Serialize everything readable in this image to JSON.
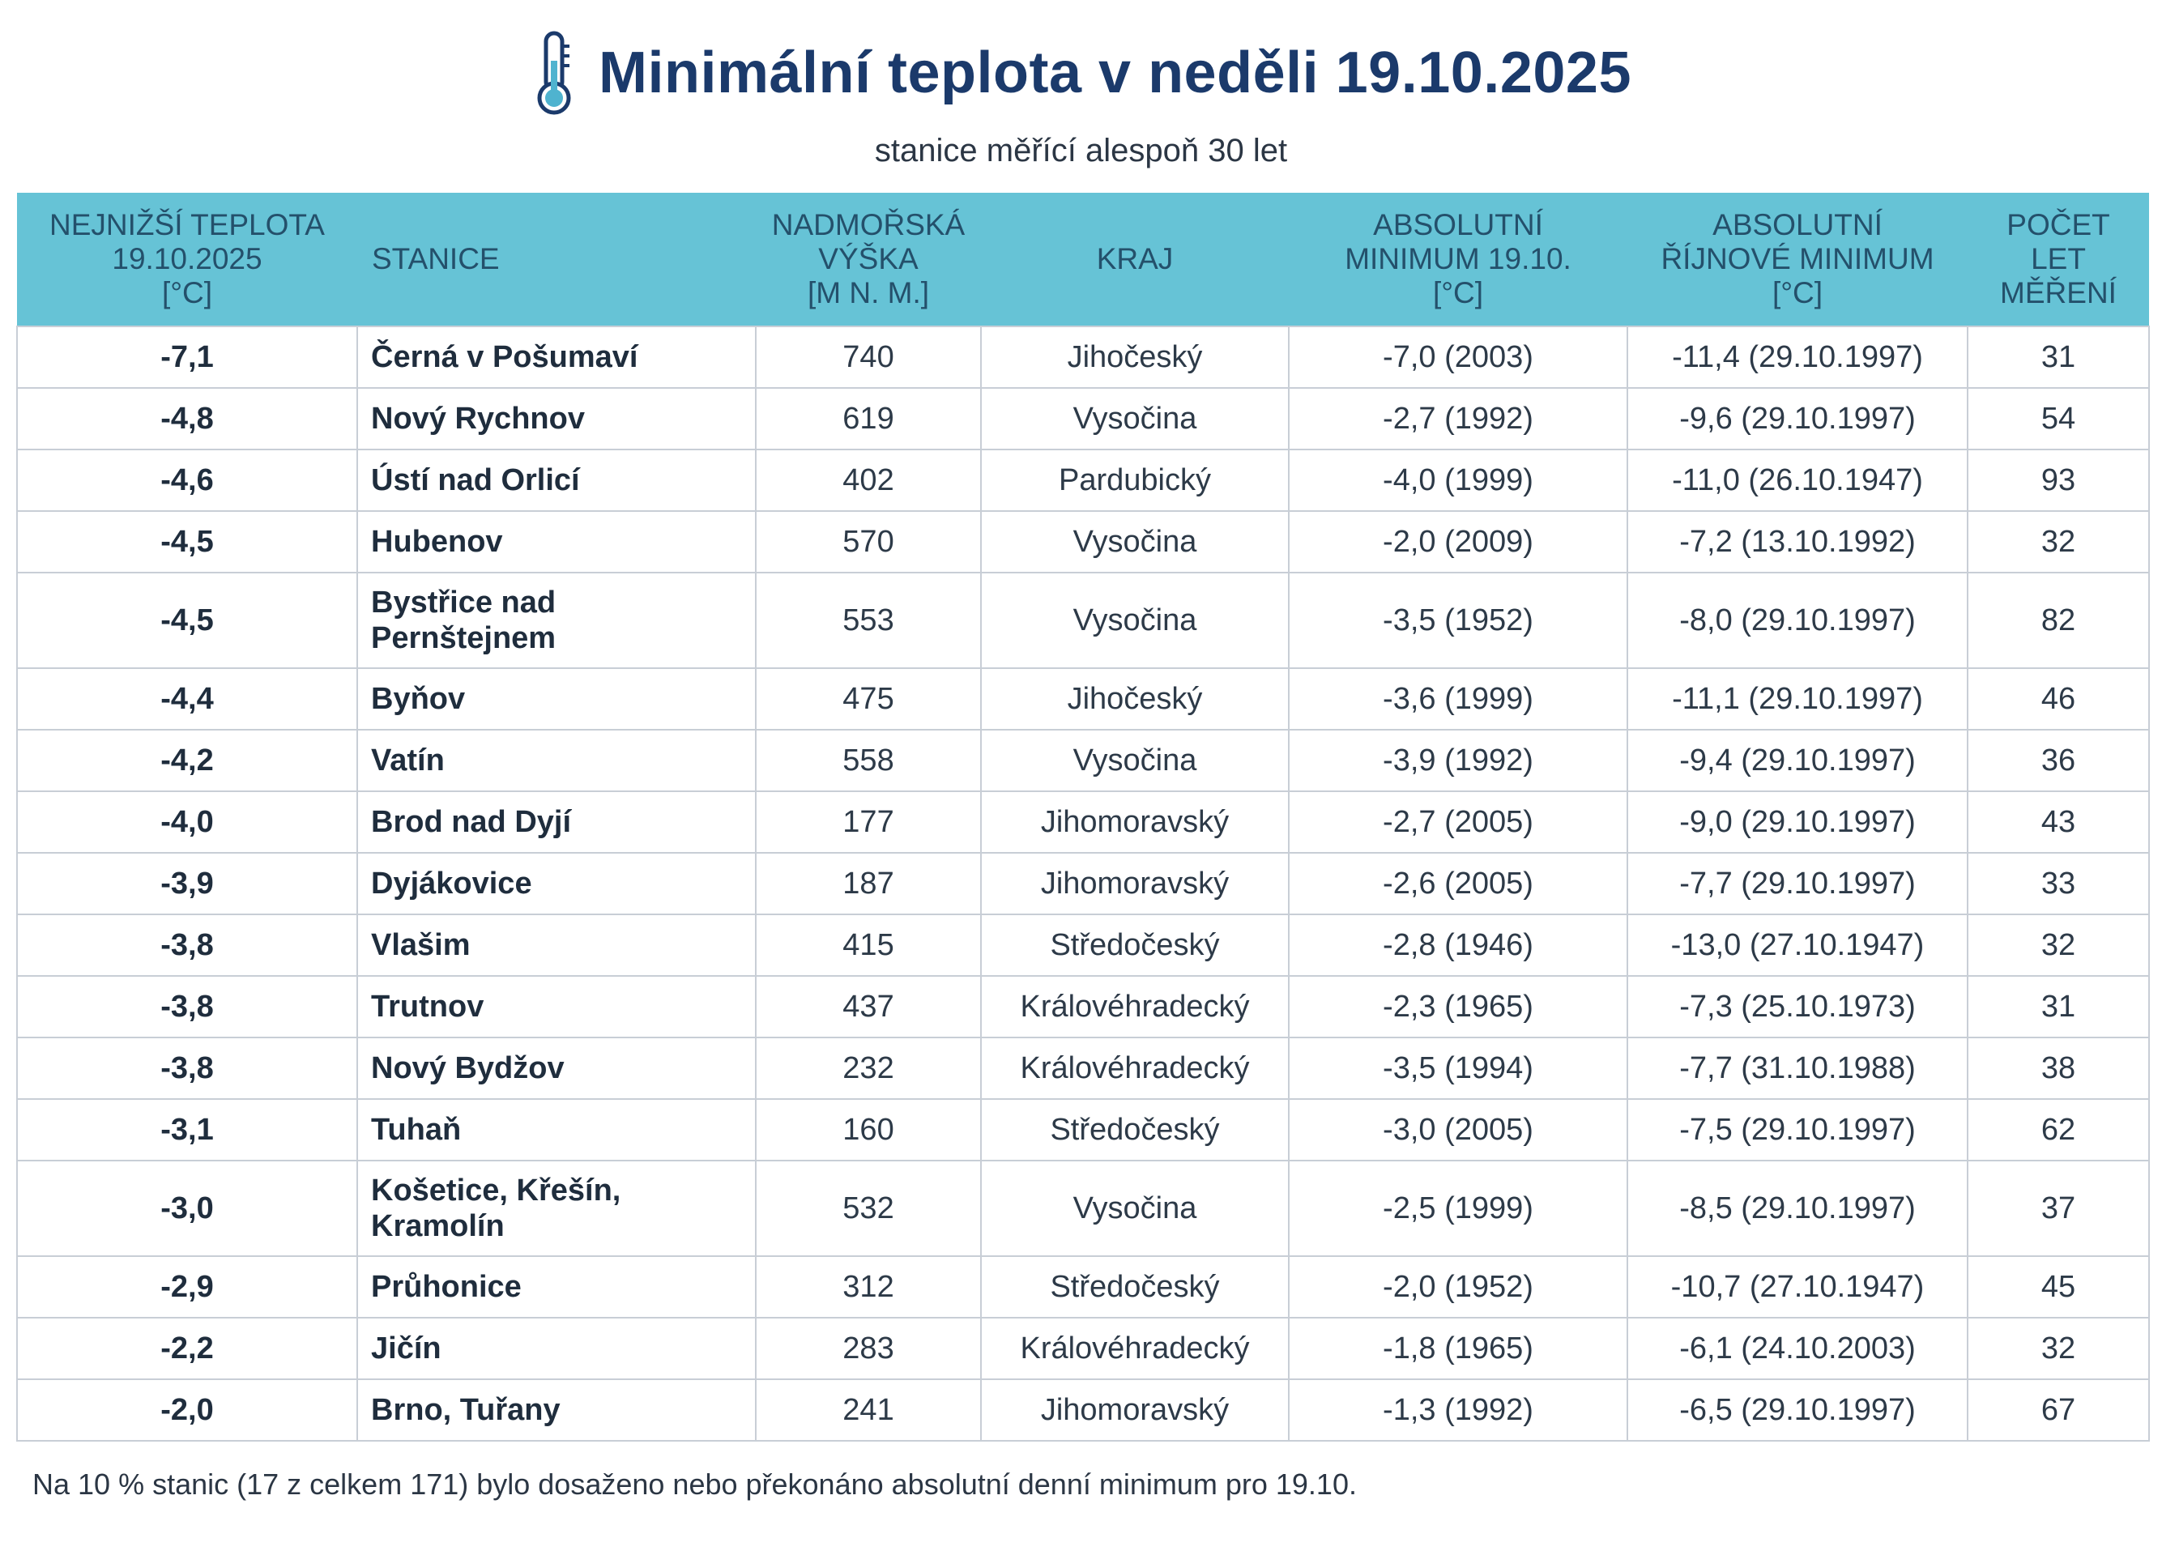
{
  "header": {
    "title": "Minimální teplota v neděli 19.10.2025",
    "subtitle": "stanice měřící alespoň 30 let",
    "icon": "thermometer-icon",
    "title_color": "#1b3a6b"
  },
  "table": {
    "header_bg": "#66c3d6",
    "columns": [
      [
        "NEJNIŽŠÍ TEPLOTA",
        "19.10.2025",
        "[°C]"
      ],
      [
        "STANICE"
      ],
      [
        "NADMOŘSKÁ",
        "VÝŠKA",
        "[m n. m.]"
      ],
      [
        "KRAJ"
      ],
      [
        "ABSOLUTNÍ",
        "MINIMUM 19.10.",
        "[°C]"
      ],
      [
        "ABSOLUTNÍ",
        "ŘÍJNOVÉ MINIMUM",
        "[°C]"
      ],
      [
        "POČET",
        "LET",
        "MĚŘENÍ"
      ]
    ],
    "rows": [
      [
        "-7,1",
        "Černá v Pošumaví",
        "740",
        "Jihočeský",
        "-7,0 (2003)",
        "-11,4 (29.10.1997)",
        "31"
      ],
      [
        "-4,8",
        "Nový Rychnov",
        "619",
        "Vysočina",
        "-2,7 (1992)",
        "-9,6 (29.10.1997)",
        "54"
      ],
      [
        "-4,6",
        "Ústí nad Orlicí",
        "402",
        "Pardubický",
        "-4,0 (1999)",
        "-11,0 (26.10.1947)",
        "93"
      ],
      [
        "-4,5",
        "Hubenov",
        "570",
        "Vysočina",
        "-2,0 (2009)",
        "-7,2 (13.10.1992)",
        "32"
      ],
      [
        "-4,5",
        "Bystřice nad Pernštejnem",
        "553",
        "Vysočina",
        "-3,5 (1952)",
        "-8,0 (29.10.1997)",
        "82"
      ],
      [
        "-4,4",
        "Byňov",
        "475",
        "Jihočeský",
        "-3,6 (1999)",
        "-11,1 (29.10.1997)",
        "46"
      ],
      [
        "-4,2",
        "Vatín",
        "558",
        "Vysočina",
        "-3,9 (1992)",
        "-9,4 (29.10.1997)",
        "36"
      ],
      [
        "-4,0",
        "Brod nad Dyjí",
        "177",
        "Jihomoravský",
        "-2,7 (2005)",
        "-9,0 (29.10.1997)",
        "43"
      ],
      [
        "-3,9",
        "Dyjákovice",
        "187",
        "Jihomoravský",
        "-2,6 (2005)",
        "-7,7 (29.10.1997)",
        "33"
      ],
      [
        "-3,8",
        "Vlašim",
        "415",
        "Středočeský",
        "-2,8 (1946)",
        "-13,0 (27.10.1947)",
        "32"
      ],
      [
        "-3,8",
        "Trutnov",
        "437",
        "Královéhradecký",
        "-2,3 (1965)",
        "-7,3 (25.10.1973)",
        "31"
      ],
      [
        "-3,8",
        "Nový Bydžov",
        "232",
        "Královéhradecký",
        "-3,5 (1994)",
        "-7,7 (31.10.1988)",
        "38"
      ],
      [
        "-3,1",
        "Tuhaň",
        "160",
        "Středočeský",
        "-3,0 (2005)",
        "-7,5 (29.10.1997)",
        "62"
      ],
      [
        "-3,0",
        "Košetice, Křešín, Kramolín",
        "532",
        "Vysočina",
        "-2,5 (1999)",
        "-8,5 (29.10.1997)",
        "37"
      ],
      [
        "-2,9",
        "Průhonice",
        "312",
        "Středočeský",
        "-2,0 (1952)",
        "-10,7 (27.10.1947)",
        "45"
      ],
      [
        "-2,2",
        "Jičín",
        "283",
        "Královéhradecký",
        "-1,8 (1965)",
        "-6,1 (24.10.2003)",
        "32"
      ],
      [
        "-2,0",
        "Brno, Tuřany",
        "241",
        "Jihomoravský",
        "-1,3 (1992)",
        "-6,5 (29.10.1997)",
        "67"
      ]
    ]
  },
  "footnote": "Na 10 % stanic (17 z celkem 171) bylo dosaženo nebo překonáno absolutní denní minimum pro 19.10."
}
